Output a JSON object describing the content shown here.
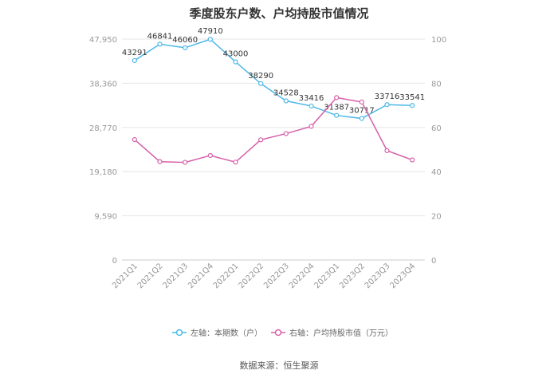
{
  "title": "季度股东户数、户均持股市值情况",
  "source": "数据来源：恒生聚源",
  "chart_data": {
    "type": "line",
    "categories": [
      "2021Q1",
      "2021Q2",
      "2021Q3",
      "2021Q4",
      "2022Q1",
      "2022Q2",
      "2022Q3",
      "2022Q4",
      "2023Q1",
      "2023Q2",
      "2023Q3",
      "2023Q4"
    ],
    "left_axis": {
      "ticks": [
        "0",
        "9,590",
        "19,180",
        "28,770",
        "38,360",
        "47,950"
      ],
      "ylim": [
        0,
        47950
      ]
    },
    "right_axis": {
      "ticks": [
        "0",
        "20",
        "40",
        "60",
        "80",
        "100"
      ],
      "ylim": [
        0,
        100
      ]
    },
    "series": [
      {
        "name": "左轴：本期数（户）",
        "axis": "left",
        "color": "#4db8e8",
        "values": [
          43291,
          46841,
          46060,
          47910,
          43000,
          38290,
          34528,
          33416,
          31387,
          30717,
          33716,
          33541
        ],
        "labels": [
          "43291",
          "46841",
          "46060",
          "47910",
          "43000",
          "38290",
          "34528",
          "33416",
          "31387",
          "30717",
          "33716",
          "33541"
        ]
      },
      {
        "name": "右轴：户均持股市值（万元）",
        "axis": "right",
        "color": "#d660a8",
        "values": [
          54.5,
          44.5,
          44.2,
          47.3,
          44.3,
          54.4,
          57.2,
          60.5,
          73.5,
          71.5,
          49.5,
          45.3
        ]
      }
    ],
    "grid": true,
    "legend_position": "bottom"
  }
}
